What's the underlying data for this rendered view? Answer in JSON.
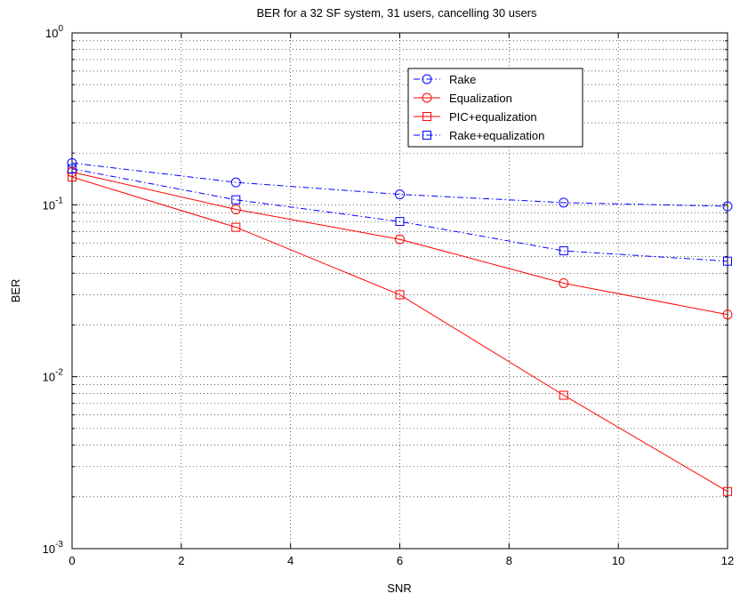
{
  "chart_data": {
    "type": "line",
    "title": "BER for a 32 SF system, 31 users, cancelling 30 users",
    "xlabel": "SNR",
    "ylabel": "BER",
    "xlim": [
      0,
      12
    ],
    "ylim": [
      0.001,
      1
    ],
    "yscale": "log",
    "grid": true,
    "legend_position": "top-right",
    "x_ticks": [
      "0",
      "2",
      "4",
      "6",
      "8",
      "10",
      "12"
    ],
    "y_ticks": [
      {
        "base": "10",
        "exp": "-3",
        "value": 0.001
      },
      {
        "base": "10",
        "exp": "-2",
        "value": 0.01
      },
      {
        "base": "10",
        "exp": "-1",
        "value": 0.1
      },
      {
        "base": "10",
        "exp": "0",
        "value": 1
      }
    ],
    "x": [
      0,
      3,
      6,
      9,
      12
    ],
    "series": [
      {
        "name": "Rake",
        "color": "#0000ff",
        "marker": "circle",
        "dash": "dashdot",
        "values": [
          0.175,
          0.135,
          0.115,
          0.103,
          0.098
        ]
      },
      {
        "name": "Equalization",
        "color": "#ff0000",
        "marker": "circle",
        "dash": "solid",
        "values": [
          0.155,
          0.094,
          0.063,
          0.035,
          0.023
        ]
      },
      {
        "name": "PIC+equalization",
        "color": "#ff0000",
        "marker": "square",
        "dash": "solid",
        "values": [
          0.145,
          0.074,
          0.03,
          0.0078,
          0.00215
        ]
      },
      {
        "name": "Rake+equalization",
        "color": "#0000ff",
        "marker": "square",
        "dash": "dashdot",
        "values": [
          0.162,
          0.107,
          0.08,
          0.054,
          0.047
        ]
      }
    ]
  }
}
